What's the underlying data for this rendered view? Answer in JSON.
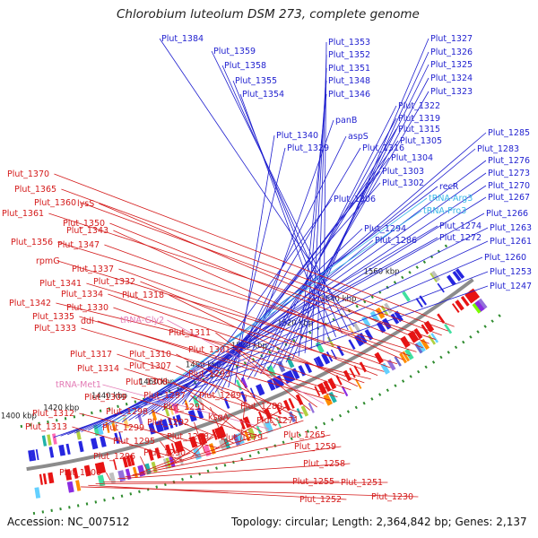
{
  "title": "Chlorobium luteolum DSM 273, complete genome",
  "footer": {
    "accession": "Accession: NC_007512",
    "summary": "Topology: circular; Length: 2,364,842 bp; Genes: 2,137"
  },
  "colors": {
    "forward_gene": "#2626e0",
    "reverse_gene": "#e81414",
    "backbone": "#8c8c8c",
    "forward_label": "#1f1fcf",
    "reverse_label": "#d41a1a",
    "rna_label_fwd": "#3ab7e8",
    "rna_label_rev": "#e37ab5",
    "tick_dots": "#2e8b2e"
  },
  "ticks": [
    "1560 kbp",
    "1540 kbp",
    "1520 kbp",
    "1500 kbp",
    "1480 kbp",
    "1460 kbp",
    "1440 kbp",
    "1420 kbp",
    "1400 kbp"
  ],
  "forward_labels": [
    "Plut_1384",
    "Plut_1359",
    "Plut_1358",
    "Plut_1355",
    "Plut_1354",
    "Plut_1353",
    "Plut_1352",
    "Plut_1351",
    "Plut_1348",
    "Plut_1346",
    "Plut_1327",
    "Plut_1326",
    "Plut_1325",
    "Plut_1324",
    "Plut_1323",
    "Plut_1322",
    "Plut_1319",
    "Plut_1315",
    "panB",
    "Plut_1340",
    "Plut_1329",
    "aspS",
    "Plut_1316",
    "Plut_1305",
    "Plut_1304",
    "Plut_1303",
    "Plut_1302",
    "Plut_1306",
    "Plut_1294",
    "Plut_1286",
    "Plut_1285",
    "Plut_1283",
    "Plut_1276",
    "Plut_1273",
    "Plut_1270",
    "Plut_1267",
    "recR",
    "tRNA-Arg3",
    "tRNA-Pro3",
    "Plut_1266",
    "Plut_1274",
    "Plut_1272",
    "Plut_1263",
    "Plut_1261",
    "Plut_1260",
    "Plut_1253",
    "Plut_1247"
  ],
  "reverse_labels": [
    "Plut_1370",
    "Plut_1365",
    "Plut_1360",
    "Plut_1361",
    "lysS",
    "Plut_1350",
    "Plut_1356",
    "Plut_1347",
    "Plut_1343",
    "rpmG",
    "Plut_1337",
    "Plut_1341",
    "Plut_1332",
    "Plut_1342",
    "Plut_1334",
    "Plut_1318",
    "Plut_1330",
    "Plut_1335",
    "ddl",
    "Plut_1333",
    "tRNA-Gly2",
    "Plut_1311",
    "Plut_1301",
    "Plut_1317",
    "Plut_1310",
    "Plut_1314",
    "Plut_1307",
    "Plut_1293",
    "tRNA-Met1",
    "Plut_1308",
    "Plut_1309",
    "Plut_1297",
    "Plut_1289",
    "Plut_1298",
    "Plut_1291",
    "Plut_1312",
    "Plut_1280",
    "Plut_1292",
    "Plut_1299",
    "ksgA",
    "Plut_1313",
    "Plut_1295",
    "Plut_1288",
    "Plut_1279",
    "Plut_1271",
    "Plut_1296",
    "Plut_1290",
    "Plut_1265",
    "Plut_1259",
    "Plut_1258",
    "Plut_1300",
    "Plut_1255",
    "Plut_1251",
    "Plut_1252",
    "Plut_1230"
  ]
}
